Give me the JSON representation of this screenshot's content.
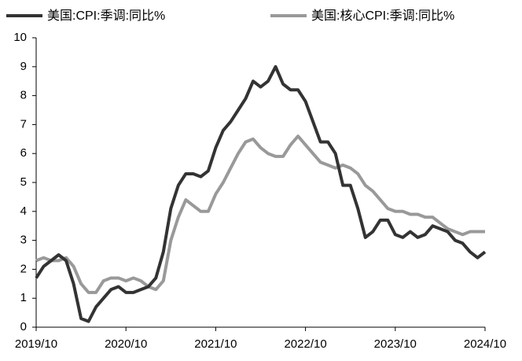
{
  "chart_data": {
    "type": "line",
    "categories": [
      "2019/10",
      null,
      null,
      null,
      null,
      null,
      null,
      null,
      null,
      null,
      null,
      null,
      "2020/10",
      null,
      null,
      null,
      null,
      null,
      null,
      null,
      null,
      null,
      null,
      null,
      "2021/10",
      null,
      null,
      null,
      null,
      null,
      null,
      null,
      null,
      null,
      null,
      null,
      "2022/10",
      null,
      null,
      null,
      null,
      null,
      null,
      null,
      null,
      null,
      null,
      null,
      "2023/10",
      null,
      null,
      null,
      null,
      null,
      null,
      null,
      null,
      null,
      null,
      null,
      "2024/10"
    ],
    "series": [
      {
        "name": "美国:CPI:季调:同比%",
        "color": "#333333",
        "values": [
          1.7,
          2.1,
          2.3,
          2.5,
          2.3,
          1.5,
          0.3,
          0.2,
          0.7,
          1.0,
          1.3,
          1.4,
          1.2,
          1.2,
          1.3,
          1.4,
          1.7,
          2.6,
          4.1,
          4.9,
          5.3,
          5.3,
          5.2,
          5.4,
          6.2,
          6.8,
          7.1,
          7.5,
          7.9,
          8.5,
          8.3,
          8.5,
          9.0,
          8.4,
          8.2,
          8.2,
          7.8,
          7.1,
          6.4,
          6.4,
          6.0,
          4.9,
          4.9,
          4.1,
          3.1,
          3.3,
          3.7,
          3.7,
          3.2,
          3.1,
          3.3,
          3.1,
          3.2,
          3.5,
          3.4,
          3.3,
          3.0,
          2.9,
          2.6,
          2.4,
          2.6
        ]
      },
      {
        "name": "美国:核心CPI:季调:同比%",
        "color": "#999999",
        "values": [
          2.3,
          2.4,
          2.3,
          2.3,
          2.4,
          2.1,
          1.5,
          1.2,
          1.2,
          1.6,
          1.7,
          1.7,
          1.6,
          1.7,
          1.6,
          1.4,
          1.3,
          1.6,
          3.0,
          3.8,
          4.4,
          4.2,
          4.0,
          4.0,
          4.6,
          5.0,
          5.5,
          6.0,
          6.4,
          6.5,
          6.2,
          6.0,
          5.9,
          5.9,
          6.3,
          6.6,
          6.3,
          6.0,
          5.7,
          5.6,
          5.5,
          5.6,
          5.5,
          5.3,
          4.9,
          4.7,
          4.4,
          4.1,
          4.0,
          4.0,
          3.9,
          3.9,
          3.8,
          3.8,
          3.6,
          3.4,
          3.3,
          3.2,
          3.3,
          3.3,
          3.3
        ]
      }
    ],
    "ylim": [
      0,
      10
    ],
    "yticks": [
      0,
      1,
      2,
      3,
      4,
      5,
      6,
      7,
      8,
      9,
      10
    ],
    "grid": false
  }
}
